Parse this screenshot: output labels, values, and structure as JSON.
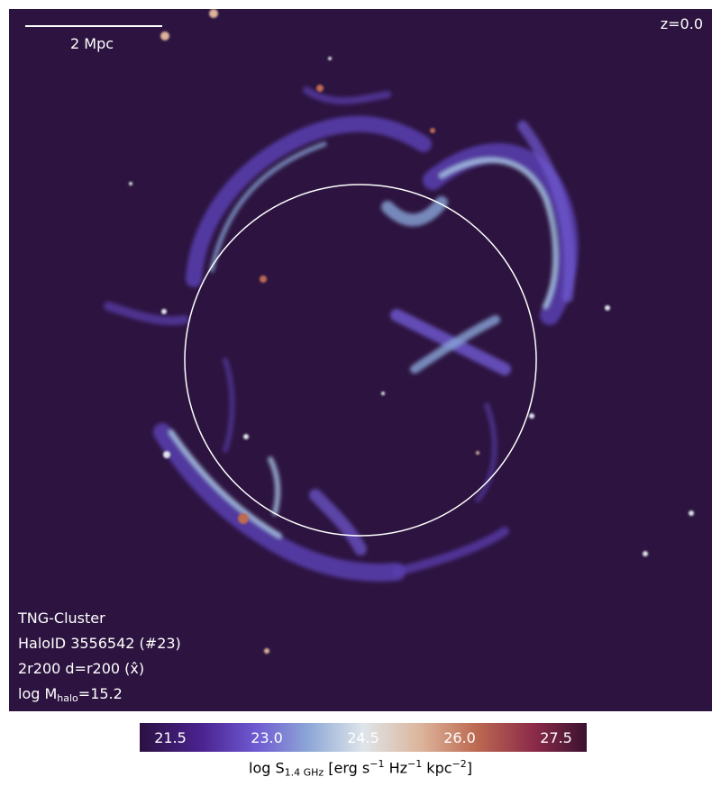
{
  "scalebar": {
    "label": "2 Mpc"
  },
  "redshift": "z=0.0",
  "info": {
    "simulation": "TNG-Cluster",
    "halo": "HaloID 3556542 (#23)",
    "projection": "2r200 d=r200 (x̂)",
    "mass_prefix": "log M",
    "mass_sub": "halo",
    "mass_value": "=15.2"
  },
  "colorbar": {
    "ticks": [
      "21.5",
      "23.0",
      "24.5",
      "26.0",
      "27.5"
    ],
    "label_prefix": "log S",
    "label_sub": "1.4 GHz",
    "label_units": "[erg s",
    "exp1": "−1",
    "mid": " Hz",
    "exp2": "−1",
    "mid2": " kpc",
    "exp3": "−2",
    "close": "]",
    "colors": [
      "#2b1141",
      "#4b2391",
      "#6f5ad2",
      "#8ea8d6",
      "#dfe5ea",
      "#dcb49a",
      "#bd6b52",
      "#8d2b49",
      "#3b1130"
    ]
  },
  "colors": {
    "background": "#2d1440",
    "filament": "#6f5ad2",
    "bright": "#b9d3ea",
    "circle": "#ffffff"
  }
}
